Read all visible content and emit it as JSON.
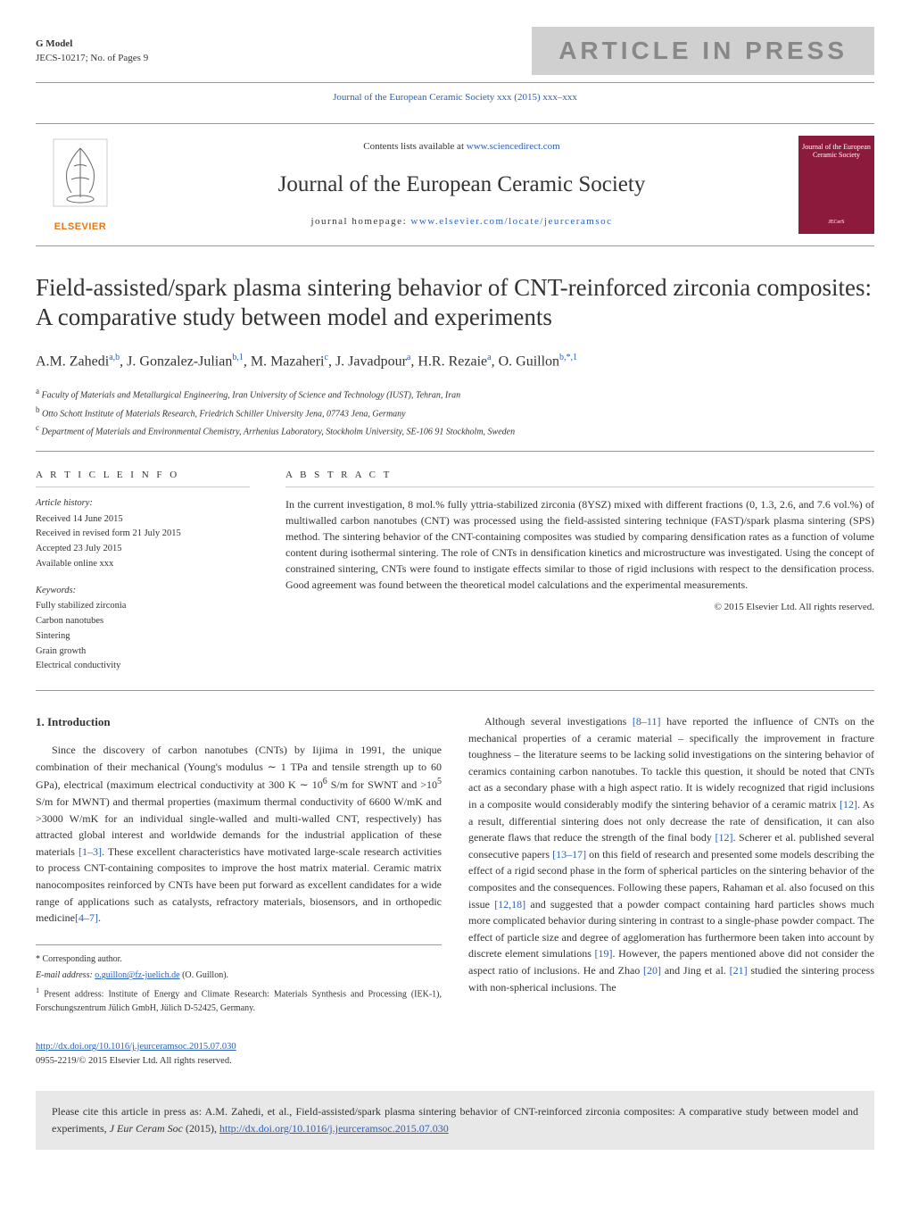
{
  "header": {
    "gmodel": "G Model",
    "article_id": "JECS-10217;   No. of Pages 9",
    "inpress_text": "ARTICLE IN PRESS",
    "journal_ref": "Journal of the European Ceramic Society xxx (2015) xxx–xxx",
    "contents_text": "Contents lists available at ",
    "contents_link": "www.sciencedirect.com",
    "journal_name": "Journal of the European Ceramic Society",
    "homepage_label": "journal homepage: ",
    "homepage_url": "www.elsevier.com/locate/jeurceramsoc",
    "elsevier_label": "ELSEVIER",
    "cover_title": "Journal of the European Ceramic Society"
  },
  "article": {
    "title": "Field-assisted/spark plasma sintering behavior of CNT-reinforced zirconia composites: A comparative study between model and experiments",
    "authors_html": "A.M. Zahedi<sup>a,b</sup>, J. Gonzalez-Julian<sup>b,1</sup>, M. Mazaheri<sup>c</sup>, J. Javadpour<sup>a</sup>, H.R. Rezaie<sup>a</sup>, O. Guillon<sup>b,*,1</sup>",
    "affiliations": {
      "a": "Faculty of Materials and Metallurgical Engineering, Iran University of Science and Technology (IUST), Tehran, Iran",
      "b": "Otto Schott Institute of Materials Research, Friedrich Schiller University Jena, 07743 Jena, Germany",
      "c": "Department of Materials and Environmental Chemistry, Arrhenius Laboratory, Stockholm University, SE-106 91 Stockholm, Sweden"
    }
  },
  "info": {
    "label": "a r t i c l e   i n f o",
    "history_label": "Article history:",
    "received": "Received 14 June 2015",
    "revised": "Received in revised form 21 July 2015",
    "accepted": "Accepted 23 July 2015",
    "available": "Available online xxx",
    "keywords_label": "Keywords:",
    "keywords": [
      "Fully stabilized zirconia",
      "Carbon nanotubes",
      "Sintering",
      "Grain growth",
      "Electrical conductivity"
    ]
  },
  "abstract": {
    "label": "a b s t r a c t",
    "text": "In the current investigation, 8 mol.% fully yttria-stabilized zirconia (8YSZ) mixed with different fractions (0, 1.3, 2.6, and 7.6 vol.%) of multiwalled carbon nanotubes (CNT) was processed using the field-assisted sintering technique (FAST)/spark plasma sintering (SPS) method. The sintering behavior of the CNT-containing composites was studied by comparing densification rates as a function of volume content during isothermal sintering. The role of CNTs in densification kinetics and microstructure was investigated. Using the concept of constrained sintering, CNTs were found to instigate effects similar to those of rigid inclusions with respect to the densification process. Good agreement was found between the theoretical model calculations and the experimental measurements.",
    "copyright": "© 2015 Elsevier Ltd. All rights reserved."
  },
  "intro": {
    "heading": "1. Introduction",
    "para1_part1": "Since the discovery of carbon nanotubes (CNTs) by Iijima in 1991, the unique combination of their mechanical (Young's modulus ∼ 1 TPa and tensile strength up to 60 GPa), electrical (maximum electrical conductivity at 300 K ∼ 10",
    "para1_exp1": "6",
    "para1_part2": " S/m for SWNT and >10",
    "para1_exp2": "5",
    "para1_part3": " S/m for MWNT) and thermal properties (maximum thermal conductivity of 6600 W/mK and >3000 W/mK for an individual single-walled and multi-walled CNT, respectively) has attracted global interest and worldwide demands for the industrial application of these materials ",
    "para1_ref1": "[1–3]",
    "para1_part4": ". These excellent characteristics have motivated large-scale research activities to process CNT-containing composites to improve the host matrix material. Ceramic matrix nanocomposites reinforced by CNTs have been put forward as excellent candidates for a wide range of applications such as catalysts, refractory materials, biosensors, and in orthopedic medicine",
    "para1_ref2": "[4–7]",
    "para1_end": ".",
    "para2_part1": "Although several investigations ",
    "para2_ref1": "[8–11]",
    "para2_part2": " have reported the influence of CNTs on the mechanical properties of a ceramic material – specifically the improvement in fracture toughness – the literature seems to be lacking solid investigations on the sintering behavior of ceramics containing carbon nanotubes. To tackle this question, it should be noted that CNTs act as a secondary phase with a high aspect ratio. It is widely recognized that rigid inclusions in a composite would considerably modify the sintering behavior of a ceramic matrix ",
    "para2_ref2": "[12]",
    "para2_part3": ". As a result, differential sintering does not only decrease the rate of densification, it can also generate flaws that reduce the strength of the final body ",
    "para2_ref3": "[12]",
    "para2_part4": ". Scherer et al. published several consecutive papers ",
    "para2_ref4": "[13–17]",
    "para2_part5": " on this field of research and presented some models describing the effect of a rigid second phase in the form of spherical particles on the sintering behavior of the composites and the consequences. Following these papers, Rahaman et al. also focused on this issue ",
    "para2_ref5": "[12,18]",
    "para2_part6": " and suggested that a powder compact containing hard particles shows much more complicated behavior during sintering in contrast to a single-phase powder compact. The effect of particle size and degree of agglomeration has furthermore been taken into account by discrete element simulations ",
    "para2_ref6": "[19]",
    "para2_part7": ". However, the papers mentioned above did not consider the aspect ratio of inclusions. He and Zhao ",
    "para2_ref7": "[20]",
    "para2_part8": " and Jing et al. ",
    "para2_ref8": "[21]",
    "para2_part9": " studied the sintering process with non-spherical inclusions. The"
  },
  "footnotes": {
    "corresponding": "* Corresponding author.",
    "email_label": "E-mail address: ",
    "email": "o.guillon@fz-juelich.de",
    "email_author": " (O. Guillon).",
    "present_address": "Present address: Institute of Energy and Climate Research: Materials Synthesis and Processing (IEK-1), Forschungszentrum Jülich GmbH, Jülich D-52425, Germany."
  },
  "doi": {
    "url": "http://dx.doi.org/10.1016/j.jeurceramsoc.2015.07.030",
    "issn_line": "0955-2219/© 2015 Elsevier Ltd. All rights reserved."
  },
  "citation": {
    "text_part1": "Please cite this article in press as: A.M. Zahedi, et al., Field-assisted/spark plasma sintering behavior of CNT-reinforced zirconia composites: A comparative study between model and experiments, ",
    "journal_italic": "J Eur Ceram Soc",
    "text_part2": " (2015), ",
    "doi": "http://dx.doi.org/10.1016/j.jeurceramsoc.2015.07.030"
  },
  "colors": {
    "link_blue": "#2a5fb8",
    "elsevier_orange": "#e67817",
    "cover_maroon": "#8b1a3d",
    "inpress_bg": "#d0d0d0",
    "cite_bg": "#e8e8e8"
  }
}
